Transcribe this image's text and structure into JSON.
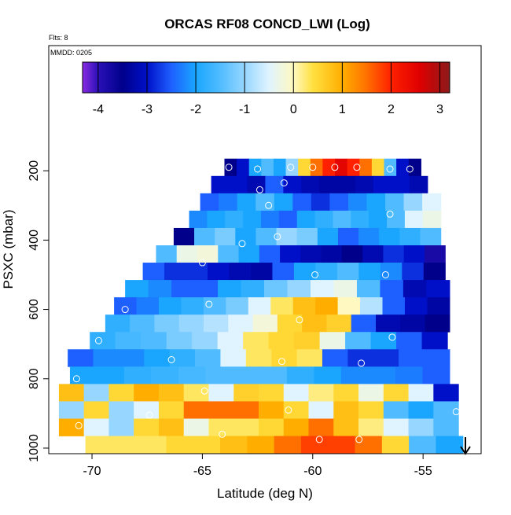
{
  "chart_data": {
    "type": "heatmap",
    "title": "ORCAS RF08 CONCD_LWI (Log)",
    "flights": "Flts: 8",
    "date_label": "MMDD: 0205",
    "x_label": "Latitude (deg N)",
    "y_label": "PSXC (mbar)",
    "xlim": [
      -71.96,
      -52.37
    ],
    "xticks": [
      -70,
      -65,
      -60,
      -55
    ],
    "ylim": [
      -161,
      1016
    ],
    "y_reversed": true,
    "yticks": [
      200,
      400,
      600,
      800,
      1000
    ],
    "row_height": 50,
    "clim": [
      -4.32,
      3.2
    ],
    "cticks": [
      -4,
      -3,
      -2,
      -1,
      0,
      1,
      2,
      3
    ],
    "colorscale": [
      {
        "value": -4.32,
        "color": "#8a2be2"
      },
      {
        "value": -4,
        "color": "#2a10b8"
      },
      {
        "value": -3.5,
        "color": "#00008b"
      },
      {
        "value": -3,
        "color": "#0010c8"
      },
      {
        "value": -2.5,
        "color": "#1e60ff"
      },
      {
        "value": -2,
        "color": "#1aa6ff"
      },
      {
        "value": -1.5,
        "color": "#50bcff"
      },
      {
        "value": -1,
        "color": "#96d6ff"
      },
      {
        "value": -0.5,
        "color": "#e0f4ff"
      },
      {
        "value": 0,
        "color": "#fff8c0"
      },
      {
        "value": 0.4,
        "color": "#ffe040"
      },
      {
        "value": 1,
        "color": "#ffae00"
      },
      {
        "value": 1.5,
        "color": "#ff7000"
      },
      {
        "value": 2,
        "color": "#ff2000"
      },
      {
        "value": 2.6,
        "color": "#dd0000"
      },
      {
        "value": 3.2,
        "color": "#8b1a1a"
      }
    ],
    "rows": [
      {
        "pressure": 190,
        "lat": [
          -64,
          -55.1
        ],
        "values": [
          -3.5,
          -3,
          -2,
          -1.5,
          -2,
          -1,
          0.5,
          1.5,
          2,
          2.5,
          2,
          1.5,
          0.5,
          -1.5,
          -3,
          -3.5
        ]
      },
      {
        "pressure": 240,
        "lat": [
          -64.6,
          -54.8
        ],
        "values": [
          -3,
          -3,
          -3.2,
          -2.5,
          -3,
          -3.2,
          -3.3,
          -3.3,
          -3.2,
          -3,
          -3,
          -3.2
        ]
      },
      {
        "pressure": 290,
        "lat": [
          -65.1,
          -54.2
        ],
        "values": [
          -2.5,
          -2.3,
          -2,
          -1.5,
          -2,
          -2.5,
          -2.8,
          -2.5,
          -2.2,
          -2,
          -1.5,
          -1,
          -0.5
        ]
      },
      {
        "pressure": 340,
        "lat": [
          -65.6,
          -54.2
        ],
        "values": [
          -2.2,
          -2,
          -1.8,
          -2,
          -2.3,
          -2.5,
          -2,
          -1.8,
          -1.5,
          -1.8,
          -2,
          -1.5,
          -0.5,
          -0.3
        ]
      },
      {
        "pressure": 390,
        "lat": [
          -66.3,
          -54.2
        ],
        "values": [
          -3.5,
          -1.5,
          -1.2,
          -2,
          -1.5,
          -1,
          -1.2,
          -2,
          -2.5,
          -2.2,
          -2,
          -1.8,
          -1.5
        ]
      },
      {
        "pressure": 440,
        "lat": [
          -67.1,
          -54
        ],
        "values": [
          -1.5,
          -0.3,
          -0.2,
          -1.5,
          -2,
          -2.5,
          -3,
          -3.2,
          -3.3,
          -3.5,
          -3.2,
          -2.8,
          -3,
          -3.8
        ]
      },
      {
        "pressure": 490,
        "lat": [
          -67.7,
          -54
        ],
        "values": [
          -2.5,
          -2.8,
          -2.8,
          -3,
          -3.2,
          -3.3,
          -2.5,
          -2,
          -1.8,
          -1.5,
          -2,
          -2.2,
          -2.8,
          -3.5
        ]
      },
      {
        "pressure": 540,
        "lat": [
          -68.5,
          -53.8
        ],
        "values": [
          -2,
          -2.2,
          -2.5,
          -2.5,
          -2,
          -1.8,
          -1.3,
          -1,
          -0.5,
          -0.3,
          -1.5,
          -2.5,
          -3.2,
          -3
        ]
      },
      {
        "pressure": 590,
        "lat": [
          -69,
          -53.8
        ],
        "values": [
          -2.5,
          -2.3,
          -2,
          -1.8,
          -1.5,
          -1.2,
          -0.5,
          0.3,
          0.8,
          1,
          0,
          -0.8,
          -2.5,
          -3,
          -3.3
        ]
      },
      {
        "pressure": 640,
        "lat": [
          -69.4,
          -53.8
        ],
        "values": [
          -1.8,
          -1.5,
          -1.2,
          -1,
          -0.8,
          -0.5,
          -0.2,
          0.5,
          0.8,
          0.6,
          -2.5,
          -3.2,
          -3.3,
          -3.5
        ]
      },
      {
        "pressure": 690,
        "lat": [
          -70.1,
          -53.9
        ],
        "values": [
          -1.8,
          -1.6,
          -1.5,
          -1.2,
          -1,
          -0.5,
          0.3,
          0.5,
          0.6,
          -0.3,
          -1.5,
          -2,
          -2.5,
          -3
        ]
      },
      {
        "pressure": 740,
        "lat": [
          -71.1,
          -53.8
        ],
        "values": [
          -2.5,
          -2.2,
          -2.2,
          -2,
          -1.8,
          -1.5,
          -0.5,
          0.3,
          0.5,
          0.3,
          -2.5,
          -2.8,
          -2.8,
          -2.5,
          -2.5
        ]
      },
      {
        "pressure": 790,
        "lat": [
          -71,
          -53.8
        ],
        "values": [
          -2,
          -2,
          -1.8,
          -1.7,
          -1.6,
          -1.5,
          -1.5,
          -1.5,
          -1.8,
          -2,
          -2.2,
          -2.2,
          -2.3,
          -2.5
        ]
      },
      {
        "pressure": 840,
        "lat": [
          -71.5,
          -53.4
        ],
        "values": [
          0.8,
          -1,
          0.5,
          1,
          0.8,
          0.3,
          -0.5,
          0.6,
          0.5,
          -0.5,
          0.2,
          0.5,
          -0.3,
          0.5,
          -0.5,
          -3
        ]
      },
      {
        "pressure": 890,
        "lat": [
          -71.5,
          -53.4
        ],
        "values": [
          -1,
          0.5,
          -1,
          -0.5,
          0.5,
          1.5,
          1.5,
          1.5,
          1,
          0.5,
          -0.5,
          0.8,
          0.5,
          -1.5,
          -2,
          -1.5
        ]
      },
      {
        "pressure": 940,
        "lat": [
          -71.5,
          -53.4
        ],
        "values": [
          1,
          -0.5,
          -1,
          0.5,
          0.8,
          -0.3,
          0.3,
          0.3,
          0.5,
          1,
          1.5,
          0.8,
          0.2,
          -0.5,
          -1,
          -1.5
        ]
      },
      {
        "pressure": 990,
        "lat": [
          -70.3,
          -53.2
        ],
        "values": [
          0.3,
          0.3,
          0.3,
          0.5,
          0.5,
          0.8,
          1,
          1.5,
          1.8,
          1.8,
          1.5,
          0.5,
          -1.5,
          -2
        ]
      }
    ],
    "points": {
      "x": [
        -63.8,
        -62.5,
        -61,
        -60,
        -59,
        -58,
        -56.5,
        -55.6,
        -61.3,
        -62.4,
        -62,
        -56.5,
        -61.6,
        -65,
        -63.2,
        -59.9,
        -56.7,
        -64.7,
        -68.5,
        -60.6,
        -56.4,
        -69.7,
        -66.4,
        -61.4,
        -57.8,
        -70.7,
        -64.9,
        -61.1,
        -53.5,
        -67.4,
        -59.7,
        -57.9,
        -64.1,
        -70.6
      ],
      "y": [
        190,
        195,
        190,
        190,
        190,
        190,
        195,
        195,
        235,
        255,
        300,
        325,
        390,
        465,
        410,
        500,
        500,
        585,
        600,
        630,
        680,
        690,
        745,
        750,
        755,
        800,
        835,
        890,
        895,
        905,
        975,
        975,
        960,
        935
      ]
    }
  }
}
